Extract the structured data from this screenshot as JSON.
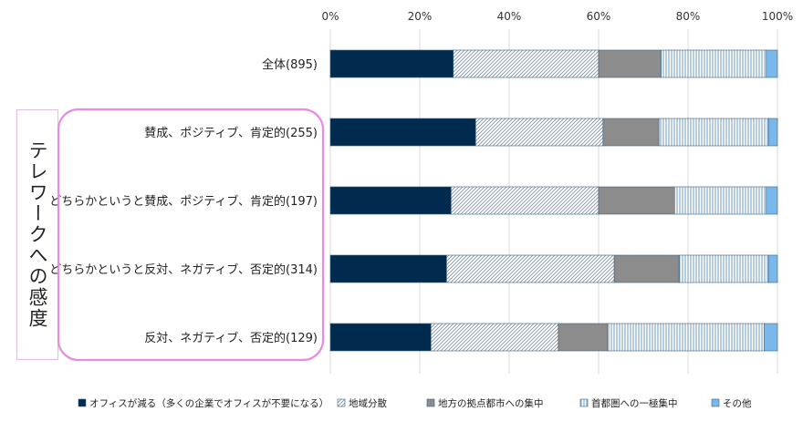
{
  "chart_data": {
    "type": "bar",
    "orientation": "horizontal",
    "stacked": true,
    "percent": true,
    "categories": [
      "全体(895)",
      "賛成、ポジティブ、肯定的(255)",
      "どちらかというと賛成、ポジティブ、肯定的(197)",
      "どちらかというと反対、ネガティブ、否定的(314)",
      "反対、ネガティブ、否定的(129)"
    ],
    "series": [
      {
        "name": "オフィスが減る（多くの企業でオフィスが不要になる）",
        "values": [
          27.5,
          32.5,
          27,
          26,
          22.5
        ],
        "color": "#002b4f",
        "pattern": "solid"
      },
      {
        "name": "地域分散",
        "values": [
          32.5,
          28.5,
          33,
          37.5,
          28.5
        ],
        "color": "#ffffff",
        "pattern": "diagonal"
      },
      {
        "name": "地方の拠点都市への集中",
        "values": [
          14,
          12.5,
          17,
          14.5,
          11
        ],
        "color": "#8c8c8c",
        "pattern": "solid"
      },
      {
        "name": "首都圏への一極集中",
        "values": [
          23.5,
          24.5,
          20.5,
          20,
          35
        ],
        "color": "#ffffff",
        "pattern": "vertical"
      },
      {
        "name": "その他",
        "values": [
          2.5,
          2,
          2.5,
          2,
          3
        ],
        "color": "#7ab8ec",
        "pattern": "solid"
      }
    ],
    "xlim": [
      0,
      100
    ],
    "x_ticks": [
      "0%",
      "20%",
      "40%",
      "60%",
      "80%",
      "100%"
    ],
    "gridlines": true,
    "legend_position": "bottom",
    "group_label": "テレワークへの感度"
  }
}
